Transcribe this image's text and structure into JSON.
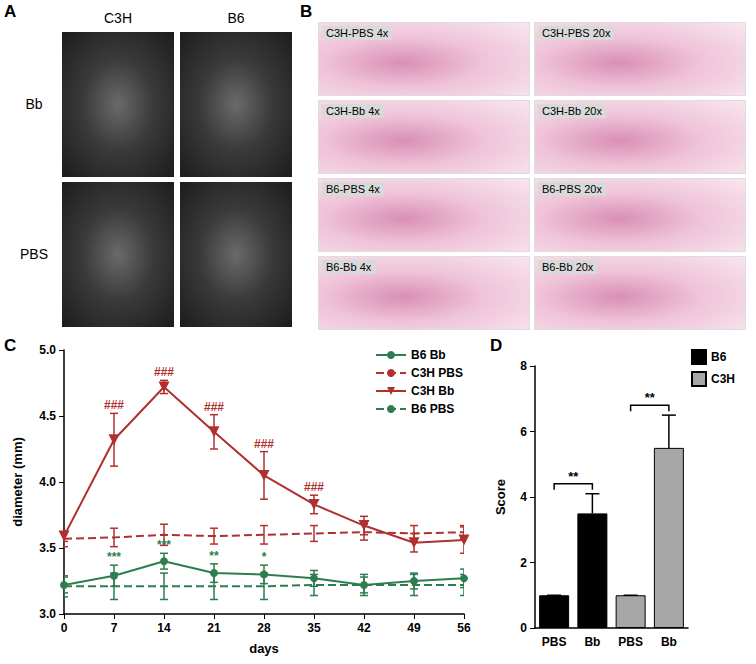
{
  "panel_A": {
    "label": "A",
    "columns": [
      "C3H",
      "B6"
    ],
    "rows": [
      "Bb",
      "PBS"
    ]
  },
  "panel_B": {
    "label": "B",
    "images": [
      [
        "C3H-PBS 4x",
        "C3H-PBS 20x"
      ],
      [
        "C3H-Bb 4x",
        "C3H-Bb 20x"
      ],
      [
        "B6-PBS 4x",
        "B6-PBS 20x"
      ],
      [
        "B6-Bb 4x",
        "B6-Bb 20x"
      ]
    ]
  },
  "chart_data": [
    {
      "type": "line",
      "panel": "C",
      "x_label": "days",
      "y_label": "diameter (mm)",
      "x": [
        0,
        7,
        14,
        21,
        28,
        35,
        42,
        49,
        56
      ],
      "xlim": [
        0,
        56
      ],
      "xticks": [
        0,
        7,
        14,
        21,
        28,
        35,
        42,
        49,
        56
      ],
      "ylim": [
        3,
        5
      ],
      "yticks": [
        {
          "value": 3,
          "label": "3.0"
        },
        3.5,
        {
          "value": 4,
          "label": "4.0"
        },
        4.5,
        {
          "value": 5,
          "label": "5.0"
        }
      ],
      "grid": false,
      "legend": "upper right",
      "series": [
        {
          "name": "B6 Bb",
          "color": "#2e7d4f",
          "marker": "circle",
          "line_style": "solid",
          "values": [
            3.22,
            3.29,
            3.4,
            3.31,
            3.3,
            3.27,
            3.22,
            3.25,
            3.27
          ],
          "errors": [
            0.06,
            0.08,
            0.06,
            0.07,
            0.07,
            0.06,
            0.06,
            0.06,
            0.07
          ]
        },
        {
          "name": "C3H PBS",
          "color": "#b03030",
          "marker": "none",
          "line_style": "dashed",
          "values": [
            3.57,
            3.58,
            3.6,
            3.59,
            3.6,
            3.61,
            3.62,
            3.61,
            3.62
          ],
          "errors": [
            0.06,
            0.07,
            0.08,
            0.06,
            0.07,
            0.06,
            0.06,
            0.06,
            0.05
          ]
        },
        {
          "name": "C3H Bb",
          "color": "#b03030",
          "marker": "triangle_down",
          "line_style": "solid",
          "values": [
            3.59,
            4.32,
            4.72,
            4.38,
            4.05,
            3.83,
            3.67,
            3.54,
            3.56
          ],
          "errors": [
            0.04,
            0.2,
            0.05,
            0.13,
            0.18,
            0.07,
            0.07,
            0.07,
            0.1
          ]
        },
        {
          "name": "B6 PBS",
          "color": "#2e7d4f",
          "marker": "none",
          "line_style": "dashed",
          "values": [
            3.21,
            3.21,
            3.21,
            3.21,
            3.21,
            3.22,
            3.22,
            3.22,
            3.22
          ],
          "errors": [
            0.08,
            0.1,
            0.1,
            0.1,
            0.1,
            0.08,
            0.08,
            0.08,
            0.08
          ]
        }
      ],
      "annotations": [
        {
          "text": "###",
          "x": 7,
          "series": "C3H Bb"
        },
        {
          "text": "###",
          "x": 14,
          "series": "C3H Bb"
        },
        {
          "text": "###",
          "x": 21,
          "series": "C3H Bb"
        },
        {
          "text": "###",
          "x": 28,
          "series": "C3H Bb"
        },
        {
          "text": "###",
          "x": 35,
          "series": "C3H Bb"
        },
        {
          "text": "***",
          "x": 7,
          "series": "B6 Bb"
        },
        {
          "text": "***",
          "x": 14,
          "series": "B6 Bb"
        },
        {
          "text": "**",
          "x": 21,
          "series": "B6 Bb"
        },
        {
          "text": "*",
          "x": 28,
          "series": "B6 Bb"
        }
      ]
    },
    {
      "type": "bar",
      "panel": "D",
      "y_label": "Score",
      "categories": [
        "PBS",
        "Bb",
        "PBS",
        "Bb"
      ],
      "ylim": [
        0,
        8
      ],
      "yticks": [
        0,
        2,
        4,
        6,
        8
      ],
      "grid": false,
      "legend": "upper right",
      "series": [
        {
          "name": "B6",
          "color": "#000000",
          "values": [
            1,
            3.5,
            null,
            null
          ],
          "errors": [
            0,
            0.6,
            null,
            null
          ]
        },
        {
          "name": "C3H",
          "color": "#a6a6a6",
          "values": [
            null,
            null,
            1,
            5.5
          ],
          "errors": [
            null,
            null,
            0,
            1.0
          ]
        }
      ],
      "annotations": [
        {
          "text": "**",
          "between": [
            0,
            1
          ]
        },
        {
          "text": "**",
          "between": [
            2,
            3
          ]
        }
      ]
    }
  ]
}
